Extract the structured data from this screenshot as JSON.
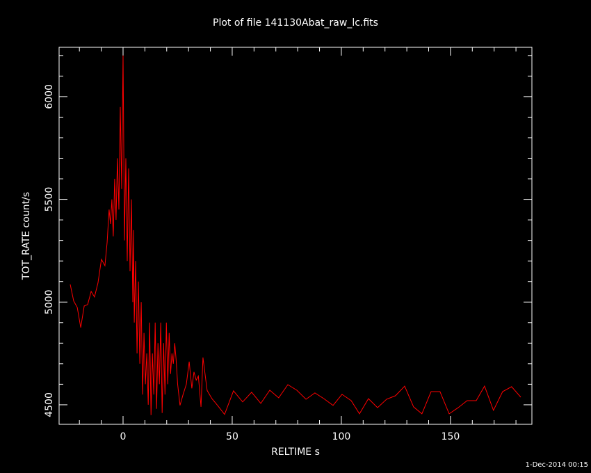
{
  "chart_data": {
    "type": "line",
    "title": "Plot of file 141130Abat_raw_lc.fits",
    "x_label": "RELTIME  s",
    "y_label": "TOT_RATE  count/s",
    "footer": "1-Dec-2014 00:15",
    "xlim": [
      -29.3,
      187.3
    ],
    "ylim": [
      4405,
      6240
    ],
    "xticks": [
      0,
      50,
      100,
      150
    ],
    "yticks": [
      4500,
      5000,
      5500,
      6000
    ],
    "xminorticks": [
      -20,
      -10,
      10,
      20,
      30,
      40,
      60,
      70,
      80,
      90,
      110,
      120,
      130,
      140,
      160,
      170,
      180
    ],
    "yminorticks": [
      4600,
      4700,
      4800,
      4900,
      5100,
      5200,
      5300,
      5400,
      5600,
      5700,
      5800,
      5900,
      6100,
      6200
    ],
    "series": [
      {
        "color": "#ff0000",
        "x": [
          -24.2,
          -22.6,
          -21.0,
          -19.4,
          -17.8,
          -16.2,
          -14.6,
          -13.1,
          -11.5,
          -9.9,
          -8.3,
          -7.3,
          -6.4,
          -5.76,
          -5.12,
          -4.48,
          -3.84,
          -3.2,
          -2.56,
          -1.92,
          -1.28,
          -0.64,
          0,
          0.64,
          1.28,
          1.92,
          2.56,
          3.2,
          3.84,
          4.48,
          4.8,
          5.12,
          5.76,
          6.4,
          7.04,
          7.68,
          8.32,
          8.96,
          9.6,
          10.24,
          10.88,
          11.52,
          12.16,
          12.8,
          13.44,
          14.08,
          14.72,
          15.36,
          16.0,
          16.64,
          17.28,
          17.92,
          18.56,
          19.2,
          19.84,
          20.48,
          21.12,
          21.76,
          22.4,
          23.04,
          23.68,
          24.32,
          25.0,
          26.1,
          27.5,
          29.0,
          30.3,
          31.5,
          32.5,
          33.5,
          34.5,
          35.7,
          36.6,
          38.5,
          40.7,
          43.3,
          46.5,
          50.6,
          54.8,
          58.9,
          63.1,
          67.2,
          71.3,
          75.5,
          79.6,
          83.8,
          87.9,
          92.0,
          96.2,
          100.3,
          104.5,
          108.3,
          112.4,
          116.6,
          120.7,
          124.8,
          129.0,
          133.1,
          136.9,
          141.1,
          145.2,
          149.4,
          153.5,
          157.6,
          161.8,
          165.6,
          169.7,
          173.9,
          178.0,
          182.2
        ],
        "values": [
          5086,
          5005,
          4974,
          4876,
          4981,
          4988,
          5052,
          5025,
          5093,
          5208,
          5177,
          5292,
          5450,
          5380,
          5500,
          5320,
          5600,
          5400,
          5700,
          5450,
          5950,
          5550,
          6200,
          5300,
          5700,
          5200,
          5650,
          5150,
          5500,
          5000,
          5350,
          4900,
          5200,
          4750,
          5100,
          4700,
          5000,
          4550,
          4850,
          4600,
          4750,
          4500,
          4900,
          4450,
          4750,
          4550,
          4900,
          4480,
          4800,
          4600,
          4900,
          4460,
          4800,
          4550,
          4900,
          4600,
          4850,
          4650,
          4750,
          4700,
          4800,
          4720,
          4600,
          4497,
          4550,
          4600,
          4710,
          4580,
          4660,
          4620,
          4640,
          4490,
          4730,
          4570,
          4530,
          4497,
          4453,
          4568,
          4514,
          4561,
          4507,
          4571,
          4534,
          4598,
          4571,
          4527,
          4558,
          4530,
          4497,
          4551,
          4520,
          4456,
          4530,
          4486,
          4527,
          4544,
          4591,
          4490,
          4456,
          4564,
          4564,
          4456,
          4486,
          4520,
          4520,
          4591,
          4473,
          4564,
          4588,
          4537
        ]
      }
    ]
  }
}
